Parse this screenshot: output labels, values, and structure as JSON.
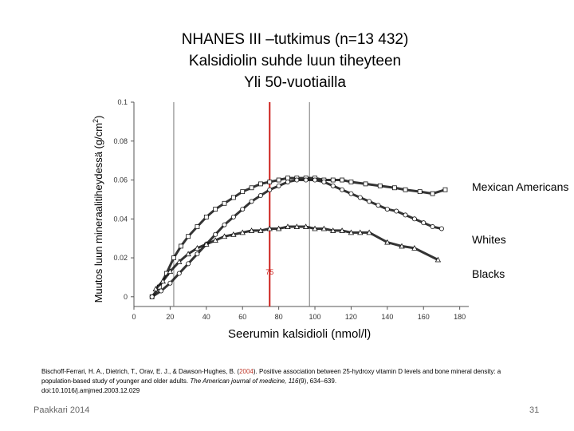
{
  "title": {
    "line1": "NHANES III –tutkimus (n=13 432)",
    "line2": "Kalsidiolin suhde luun tiheyteen",
    "line3": "Yli 50-vuotiailla"
  },
  "citation": {
    "before_year": "Bischoff-Ferrari, H. A., Dietrich, T., Orav, E. J., & Dawson-Hughes, B. (",
    "year": "2004",
    "after_year": "). Positive association between 25-hydroxy vitamin D levels and bone mineral density: a population-based study of younger and older adults.",
    "journal": "The American journal of medicine, 116",
    "pages": "(9), 634–639.",
    "doi": "doi:10.1016/j.amjmed.2003.12.029"
  },
  "footer": {
    "left": "Paakkari 2014",
    "page_number": "31"
  },
  "colors": {
    "threshold_line": "#cc1f1a",
    "axis": "#555555",
    "series": "#111111"
  },
  "chart_data": {
    "type": "scatter",
    "xlabel": "Seerumin kalsidioli (nmol/l)",
    "ylabel_main": "Muutos luun mineraalitiheydessä (g/cm",
    "ylabel_sup": "2",
    "ylabel_end": ")",
    "xlim": [
      0,
      185
    ],
    "ylim": [
      -0.005,
      0.1
    ],
    "x_ticks": [
      0,
      20,
      40,
      60,
      80,
      100,
      120,
      140,
      160,
      180
    ],
    "y_ticks": [
      0,
      0.02,
      0.04,
      0.06,
      0.08,
      0.1
    ],
    "y_tick_labels": [
      "0",
      "0.02",
      "0.04",
      "0.06",
      "0.08",
      "0.1"
    ],
    "vertical_lines": [
      22,
      97
    ],
    "threshold": {
      "x": 75,
      "label": "75"
    },
    "series": [
      {
        "name": "Mexican Americans",
        "marker": "square",
        "x": [
          10,
          14,
          18,
          22,
          26,
          30,
          35,
          40,
          45,
          50,
          55,
          60,
          65,
          70,
          75,
          80,
          85,
          90,
          95,
          100,
          105,
          110,
          115,
          120,
          128,
          136,
          144,
          150,
          158,
          165,
          172
        ],
        "y": [
          0.0,
          0.005,
          0.012,
          0.02,
          0.026,
          0.031,
          0.036,
          0.041,
          0.045,
          0.048,
          0.051,
          0.054,
          0.056,
          0.058,
          0.059,
          0.06,
          0.061,
          0.061,
          0.061,
          0.061,
          0.06,
          0.06,
          0.06,
          0.059,
          0.058,
          0.057,
          0.056,
          0.055,
          0.054,
          0.053,
          0.055
        ]
      },
      {
        "name": "Whites",
        "marker": "circle",
        "x": [
          10,
          15,
          20,
          25,
          30,
          35,
          40,
          45,
          50,
          55,
          60,
          65,
          70,
          75,
          80,
          85,
          90,
          95,
          100,
          105,
          110,
          115,
          120,
          125,
          130,
          135,
          140,
          145,
          150,
          155,
          160,
          165,
          170
        ],
        "y": [
          0.0,
          0.003,
          0.007,
          0.012,
          0.017,
          0.022,
          0.027,
          0.032,
          0.037,
          0.041,
          0.045,
          0.049,
          0.052,
          0.055,
          0.057,
          0.059,
          0.06,
          0.06,
          0.06,
          0.059,
          0.057,
          0.055,
          0.053,
          0.051,
          0.049,
          0.047,
          0.045,
          0.044,
          0.042,
          0.04,
          0.038,
          0.036,
          0.035
        ]
      },
      {
        "name": "Blacks",
        "marker": "triangle",
        "x": [
          12,
          16,
          20,
          25,
          30,
          35,
          40,
          45,
          50,
          55,
          60,
          65,
          70,
          75,
          80,
          85,
          90,
          95,
          100,
          105,
          110,
          115,
          120,
          125,
          130,
          140,
          148,
          155,
          168
        ],
        "y": [
          0.004,
          0.008,
          0.013,
          0.018,
          0.022,
          0.025,
          0.027,
          0.029,
          0.031,
          0.032,
          0.033,
          0.034,
          0.034,
          0.035,
          0.035,
          0.036,
          0.036,
          0.036,
          0.035,
          0.035,
          0.034,
          0.034,
          0.033,
          0.033,
          0.033,
          0.028,
          0.026,
          0.025,
          0.019
        ]
      }
    ]
  }
}
